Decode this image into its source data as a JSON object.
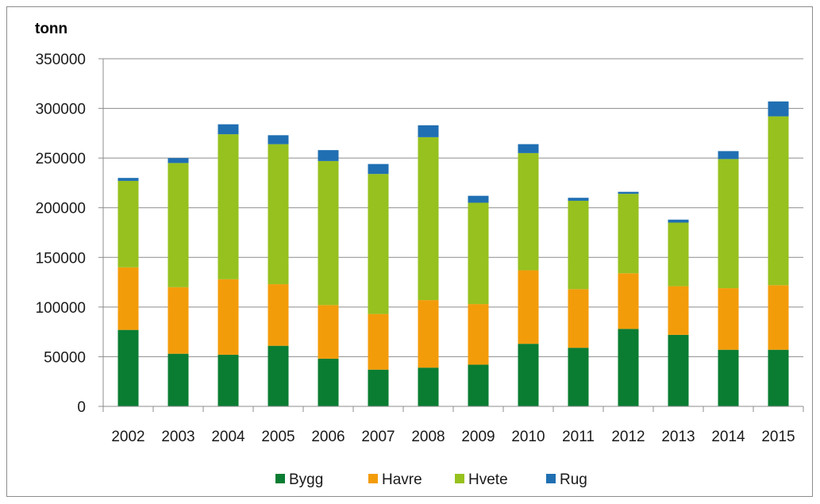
{
  "chart_data": {
    "type": "bar",
    "stacked": true,
    "ylabel": "tonn",
    "ylim": [
      0,
      350000
    ],
    "yticks": [
      "0",
      "50000",
      "100000",
      "150000",
      "200000",
      "250000",
      "300000",
      "350000"
    ],
    "categories": [
      "2002",
      "2003",
      "2004",
      "2005",
      "2006",
      "2007",
      "2008",
      "2009",
      "2010",
      "2011",
      "2012",
      "2013",
      "2014",
      "2015"
    ],
    "series": [
      {
        "name": "Bygg",
        "color": "#0a7d32",
        "values": [
          77000,
          53000,
          52000,
          61000,
          48000,
          37000,
          39000,
          42000,
          63000,
          59000,
          78000,
          72000,
          57000,
          57000
        ]
      },
      {
        "name": "Havre",
        "color": "#f39c0a",
        "values": [
          63000,
          67000,
          76000,
          62000,
          54000,
          56000,
          68000,
          61000,
          74000,
          59000,
          56000,
          49000,
          62000,
          65000
        ]
      },
      {
        "name": "Hvete",
        "color": "#96c11e",
        "values": [
          87000,
          125000,
          146000,
          141000,
          145000,
          141000,
          164000,
          102000,
          118000,
          89000,
          80000,
          64000,
          130000,
          170000
        ]
      },
      {
        "name": "Rug",
        "color": "#1f6fb2",
        "values": [
          3000,
          5000,
          10000,
          9000,
          11000,
          10000,
          12000,
          7000,
          9000,
          3000,
          2000,
          3000,
          8000,
          15000
        ]
      }
    ],
    "legend_position": "bottom",
    "grid": true
  }
}
